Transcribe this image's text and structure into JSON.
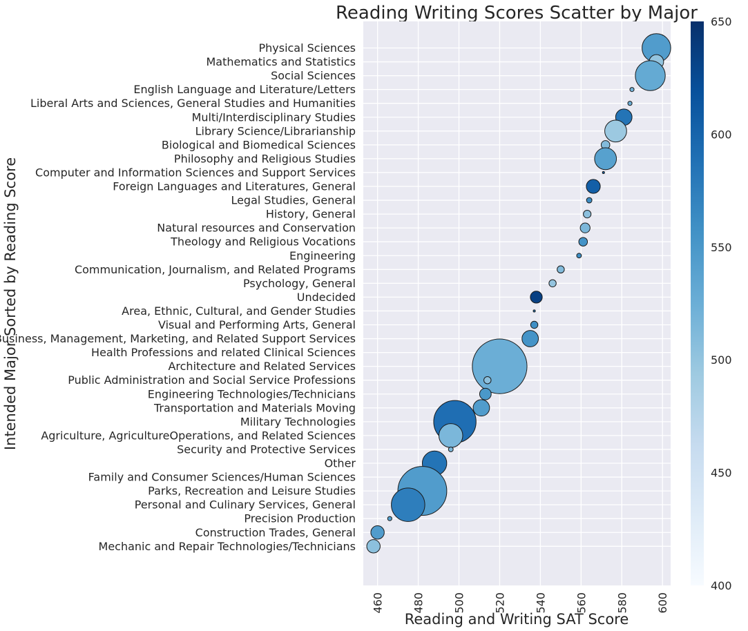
{
  "chart_data": {
    "type": "scatter",
    "title": "Reading Writing Scores Scatter by Major",
    "xlabel": "Reading and Writing SAT Score",
    "ylabel": "Intended Major Sorted by Reading Score",
    "xlim": [
      453,
      604
    ],
    "xticks": [
      460,
      480,
      500,
      520,
      540,
      560,
      580,
      600
    ],
    "colorbar": {
      "colormap": "Blues",
      "range": [
        400,
        650
      ],
      "ticks": [
        400,
        450,
        500,
        550,
        600,
        650
      ]
    },
    "grid": true,
    "points": [
      {
        "major": "Physical Sciences",
        "x": 597,
        "color_value": 545,
        "size": 55
      },
      {
        "major": "Mathematics and Statistics",
        "x": 597,
        "color_value": 500,
        "size": 14
      },
      {
        "major": "Social Sciences",
        "x": 594,
        "color_value": 530,
        "size": 60
      },
      {
        "major": "English Language and Literature/Letters",
        "x": 585,
        "color_value": 520,
        "size": 1.2
      },
      {
        "major": "Liberal Arts and Sciences, General Studies and Humanities",
        "x": 584,
        "color_value": 525,
        "size": 1.2
      },
      {
        "major": "Multi/Interdisciplinary Studies",
        "x": 581,
        "color_value": 585,
        "size": 18
      },
      {
        "major": "Library Science/Librarianship",
        "x": 577,
        "color_value": 495,
        "size": 32
      },
      {
        "major": "Biological and Biomedical Sciences",
        "x": 572,
        "color_value": 510,
        "size": 5
      },
      {
        "major": "Philosophy and Religious Studies",
        "x": 572,
        "color_value": 540,
        "size": 32
      },
      {
        "major": "Computer and Information Sciences and Support Services",
        "x": 571,
        "color_value": 600,
        "size": 0.3
      },
      {
        "major": "Foreign Languages and Literatures, General",
        "x": 566,
        "color_value": 605,
        "size": 13
      },
      {
        "major": "Legal Studies, General",
        "x": 564,
        "color_value": 560,
        "size": 2
      },
      {
        "major": "History, General",
        "x": 563,
        "color_value": 505,
        "size": 4
      },
      {
        "major": "Natural resources and Conservation",
        "x": 562,
        "color_value": 515,
        "size": 6.5
      },
      {
        "major": "Theology and Religious Vocations",
        "x": 561,
        "color_value": 555,
        "size": 5
      },
      {
        "major": "Engineering",
        "x": 559,
        "color_value": 560,
        "size": 1.5
      },
      {
        "major": "Communication, Journalism, and Related Programs",
        "x": 550,
        "color_value": 510,
        "size": 3.5
      },
      {
        "major": "Psychology, General",
        "x": 546,
        "color_value": 500,
        "size": 3.5
      },
      {
        "major": "Undecided",
        "x": 538,
        "color_value": 635,
        "size": 9.5
      },
      {
        "major": "Area, Ethnic, Cultural, and Gender Studies",
        "x": 537,
        "color_value": 580,
        "size": 0.3
      },
      {
        "major": "Visual and Performing Arts, General",
        "x": 537,
        "color_value": 560,
        "size": 3.5
      },
      {
        "major": "Business, Management, Marketing, and Related Support Services",
        "x": 535,
        "color_value": 555,
        "size": 18
      },
      {
        "major": "Health Professions and related Clinical Sciences",
        "x": 529,
        "color_value": 545,
        "size": 5
      },
      {
        "major": "Architecture and Related Services",
        "x": 520,
        "color_value": 525,
        "size": 200
      },
      {
        "major": "Public Administration and Social Service Professions",
        "x": 514,
        "color_value": 505,
        "size": 3.5
      },
      {
        "major": "Engineering Technologies/Technicians",
        "x": 513,
        "color_value": 550,
        "size": 9
      },
      {
        "major": "Transportation and Materials Moving",
        "x": 511,
        "color_value": 545,
        "size": 18
      },
      {
        "major": "Military Technologies",
        "x": 498,
        "color_value": 590,
        "size": 120
      },
      {
        "major": "Agriculture, AgricultureOperations, and Related Sciences",
        "x": 496,
        "color_value": 515,
        "size": 38
      },
      {
        "major": "Security and Protective Services",
        "x": 496,
        "color_value": 515,
        "size": 1.5
      },
      {
        "major": "Other",
        "x": 488,
        "color_value": 585,
        "size": 40
      },
      {
        "major": "Family and Consumer Sciences/Human Sciences",
        "x": 484,
        "color_value": 520,
        "size": 18
      },
      {
        "major": "Parks, Recreation and Leisure Studies",
        "x": 482,
        "color_value": 545,
        "size": 160
      },
      {
        "major": "Personal and Culinary Services, General",
        "x": 475,
        "color_value": 575,
        "size": 75
      },
      {
        "major": "Precision Production",
        "x": 466,
        "color_value": 540,
        "size": 1.2
      },
      {
        "major": "Construction Trades, General",
        "x": 460,
        "color_value": 545,
        "size": 12
      },
      {
        "major": "Mechanic and Repair Technologies/Technicians",
        "x": 458,
        "color_value": 505,
        "size": 12
      }
    ]
  }
}
